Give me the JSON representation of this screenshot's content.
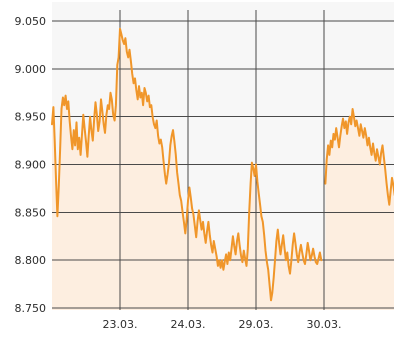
{
  "chart_data": {
    "type": "area",
    "title": "",
    "xlabel": "",
    "ylabel": "",
    "ylim": [
      8750,
      9060
    ],
    "y_ticks": [
      {
        "value": 8750,
        "label": "8.750"
      },
      {
        "value": 8800,
        "label": "8.800"
      },
      {
        "value": 8850,
        "label": "8.850"
      },
      {
        "value": 8900,
        "label": "8.900"
      },
      {
        "value": 8950,
        "label": "8.950"
      },
      {
        "value": 9000,
        "label": "9.000"
      },
      {
        "value": 9050,
        "label": "9.050"
      }
    ],
    "x_ticks": [
      {
        "x": 1.0,
        "label": "23.03."
      },
      {
        "x": 2.0,
        "label": "24.03."
      },
      {
        "x": 3.0,
        "label": "29.03."
      },
      {
        "x": 4.0,
        "label": "30.03."
      }
    ],
    "xlim": [
      0.0,
      5.05
    ],
    "grid": true,
    "colors": {
      "line": "#f0962a",
      "fill": "#fdeee0",
      "plot_bg_upper": "#f7f7f7",
      "grid": "#4a4a4a"
    },
    "series": [
      {
        "values": [
          [
            0.0,
            8942
          ],
          [
            0.02,
            8960
          ],
          [
            0.04,
            8925
          ],
          [
            0.06,
            8882
          ],
          [
            0.08,
            8846
          ],
          [
            0.1,
            8878
          ],
          [
            0.12,
            8918
          ],
          [
            0.14,
            8958
          ],
          [
            0.16,
            8970
          ],
          [
            0.18,
            8962
          ],
          [
            0.2,
            8972
          ],
          [
            0.22,
            8958
          ],
          [
            0.24,
            8966
          ],
          [
            0.26,
            8945
          ],
          [
            0.28,
            8930
          ],
          [
            0.3,
            8916
          ],
          [
            0.32,
            8936
          ],
          [
            0.34,
            8920
          ],
          [
            0.36,
            8944
          ],
          [
            0.38,
            8916
          ],
          [
            0.4,
            8928
          ],
          [
            0.42,
            8910
          ],
          [
            0.44,
            8930
          ],
          [
            0.46,
            8952
          ],
          [
            0.48,
            8938
          ],
          [
            0.5,
            8924
          ],
          [
            0.52,
            8908
          ],
          [
            0.54,
            8930
          ],
          [
            0.56,
            8950
          ],
          [
            0.58,
            8936
          ],
          [
            0.6,
            8925
          ],
          [
            0.62,
            8948
          ],
          [
            0.64,
            8965
          ],
          [
            0.66,
            8952
          ],
          [
            0.68,
            8935
          ],
          [
            0.7,
            8945
          ],
          [
            0.72,
            8968
          ],
          [
            0.74,
            8956
          ],
          [
            0.76,
            8942
          ],
          [
            0.78,
            8933
          ],
          [
            0.8,
            8952
          ],
          [
            0.82,
            8962
          ],
          [
            0.84,
            8958
          ],
          [
            0.86,
            8975
          ],
          [
            0.88,
            8968
          ],
          [
            0.9,
            8952
          ],
          [
            0.92,
            8946
          ],
          [
            0.94,
            8962
          ],
          [
            0.96,
            9004
          ],
          [
            0.98,
            9012
          ],
          [
            1.0,
            9042
          ],
          [
            1.02,
            9036
          ],
          [
            1.04,
            9030
          ],
          [
            1.06,
            9026
          ],
          [
            1.08,
            9032
          ],
          [
            1.1,
            9018
          ],
          [
            1.12,
            9012
          ],
          [
            1.14,
            9020
          ],
          [
            1.16,
            9008
          ],
          [
            1.18,
            8995
          ],
          [
            1.2,
            8985
          ],
          [
            1.22,
            8990
          ],
          [
            1.24,
            8978
          ],
          [
            1.26,
            8968
          ],
          [
            1.28,
            8982
          ],
          [
            1.3,
            8970
          ],
          [
            1.32,
            8975
          ],
          [
            1.34,
            8962
          ],
          [
            1.36,
            8980
          ],
          [
            1.38,
            8975
          ],
          [
            1.4,
            8966
          ],
          [
            1.42,
            8972
          ],
          [
            1.44,
            8960
          ],
          [
            1.46,
            8962
          ],
          [
            1.48,
            8950
          ],
          [
            1.5,
            8942
          ],
          [
            1.52,
            8938
          ],
          [
            1.54,
            8946
          ],
          [
            1.56,
            8930
          ],
          [
            1.58,
            8922
          ],
          [
            1.6,
            8926
          ],
          [
            1.62,
            8918
          ],
          [
            1.64,
            8904
          ],
          [
            1.66,
            8890
          ],
          [
            1.68,
            8880
          ],
          [
            1.7,
            8890
          ],
          [
            1.72,
            8902
          ],
          [
            1.74,
            8920
          ],
          [
            1.76,
            8930
          ],
          [
            1.78,
            8936
          ],
          [
            1.8,
            8924
          ],
          [
            1.82,
            8910
          ],
          [
            1.84,
            8892
          ],
          [
            1.86,
            8880
          ],
          [
            1.88,
            8868
          ],
          [
            1.9,
            8862
          ],
          [
            1.92,
            8850
          ],
          [
            1.94,
            8840
          ],
          [
            1.96,
            8828
          ],
          [
            1.98,
            8842
          ],
          [
            2.0,
            8862
          ],
          [
            2.02,
            8876
          ],
          [
            2.04,
            8866
          ],
          [
            2.06,
            8854
          ],
          [
            2.08,
            8848
          ],
          [
            2.1,
            8836
          ],
          [
            2.12,
            8824
          ],
          [
            2.14,
            8840
          ],
          [
            2.16,
            8852
          ],
          [
            2.18,
            8842
          ],
          [
            2.2,
            8832
          ],
          [
            2.22,
            8840
          ],
          [
            2.24,
            8828
          ],
          [
            2.26,
            8818
          ],
          [
            2.28,
            8830
          ],
          [
            2.3,
            8840
          ],
          [
            2.32,
            8826
          ],
          [
            2.34,
            8816
          ],
          [
            2.36,
            8808
          ],
          [
            2.38,
            8820
          ],
          [
            2.4,
            8812
          ],
          [
            2.42,
            8804
          ],
          [
            2.44,
            8794
          ],
          [
            2.46,
            8800
          ],
          [
            2.48,
            8792
          ],
          [
            2.5,
            8800
          ],
          [
            2.52,
            8790
          ],
          [
            2.54,
            8798
          ],
          [
            2.56,
            8806
          ],
          [
            2.58,
            8796
          ],
          [
            2.6,
            8808
          ],
          [
            2.62,
            8800
          ],
          [
            2.64,
            8812
          ],
          [
            2.66,
            8825
          ],
          [
            2.68,
            8815
          ],
          [
            2.7,
            8806
          ],
          [
            2.72,
            8820
          ],
          [
            2.74,
            8828
          ],
          [
            2.76,
            8815
          ],
          [
            2.78,
            8805
          ],
          [
            2.8,
            8798
          ],
          [
            2.82,
            8810
          ],
          [
            2.84,
            8802
          ],
          [
            2.86,
            8794
          ],
          [
            2.88,
            8812
          ],
          [
            2.9,
            8850
          ],
          [
            2.92,
            8880
          ],
          [
            2.94,
            8902
          ],
          [
            2.96,
            8896
          ],
          [
            2.98,
            8888
          ],
          [
            3.0,
            8900
          ],
          [
            3.02,
            8882
          ],
          [
            3.04,
            8870
          ],
          [
            3.06,
            8858
          ],
          [
            3.08,
            8846
          ],
          [
            3.1,
            8840
          ],
          [
            3.12,
            8826
          ],
          [
            3.14,
            8810
          ],
          [
            3.16,
            8798
          ],
          [
            3.18,
            8790
          ],
          [
            3.2,
            8774
          ],
          [
            3.22,
            8758
          ],
          [
            3.24,
            8766
          ],
          [
            3.26,
            8782
          ],
          [
            3.28,
            8800
          ],
          [
            3.3,
            8820
          ],
          [
            3.32,
            8832
          ],
          [
            3.34,
            8818
          ],
          [
            3.36,
            8806
          ],
          [
            3.38,
            8816
          ],
          [
            3.4,
            8826
          ],
          [
            3.42,
            8812
          ],
          [
            3.44,
            8800
          ],
          [
            3.46,
            8808
          ],
          [
            3.48,
            8794
          ],
          [
            3.5,
            8786
          ],
          [
            3.52,
            8800
          ],
          [
            3.54,
            8816
          ],
          [
            3.56,
            8828
          ],
          [
            3.58,
            8818
          ],
          [
            3.6,
            8806
          ],
          [
            3.62,
            8798
          ],
          [
            3.64,
            8808
          ],
          [
            3.66,
            8816
          ],
          [
            3.68,
            8808
          ],
          [
            3.7,
            8800
          ],
          [
            3.72,
            8796
          ],
          [
            3.74,
            8806
          ],
          [
            3.76,
            8818
          ],
          [
            3.78,
            8810
          ],
          [
            3.8,
            8800
          ],
          [
            3.82,
            8805
          ],
          [
            3.84,
            8812
          ],
          [
            3.86,
            8804
          ],
          [
            3.88,
            8798
          ],
          [
            3.9,
            8796
          ],
          [
            3.92,
            8802
          ],
          [
            3.94,
            8808
          ],
          [
            3.96,
            8800
          ],
          [
            4.02,
            8880
          ],
          [
            4.04,
            8905
          ],
          [
            4.06,
            8920
          ],
          [
            4.08,
            8910
          ],
          [
            4.1,
            8925
          ],
          [
            4.12,
            8918
          ],
          [
            4.14,
            8932
          ],
          [
            4.16,
            8926
          ],
          [
            4.18,
            8938
          ],
          [
            4.2,
            8928
          ],
          [
            4.22,
            8918
          ],
          [
            4.24,
            8930
          ],
          [
            4.26,
            8940
          ],
          [
            4.28,
            8948
          ],
          [
            4.3,
            8938
          ],
          [
            4.32,
            8945
          ],
          [
            4.34,
            8932
          ],
          [
            4.36,
            8944
          ],
          [
            4.38,
            8950
          ],
          [
            4.4,
            8942
          ],
          [
            4.42,
            8958
          ],
          [
            4.44,
            8950
          ],
          [
            4.46,
            8940
          ],
          [
            4.48,
            8946
          ],
          [
            4.5,
            8938
          ],
          [
            4.52,
            8930
          ],
          [
            4.54,
            8942
          ],
          [
            4.56,
            8935
          ],
          [
            4.58,
            8928
          ],
          [
            4.6,
            8938
          ],
          [
            4.62,
            8930
          ],
          [
            4.64,
            8920
          ],
          [
            4.66,
            8928
          ],
          [
            4.68,
            8918
          ],
          [
            4.7,
            8910
          ],
          [
            4.72,
            8922
          ],
          [
            4.74,
            8912
          ],
          [
            4.76,
            8904
          ],
          [
            4.78,
            8916
          ],
          [
            4.8,
            8908
          ],
          [
            4.82,
            8900
          ],
          [
            4.84,
            8912
          ],
          [
            4.86,
            8920
          ],
          [
            4.88,
            8908
          ],
          [
            4.9,
            8895
          ],
          [
            4.92,
            8880
          ],
          [
            4.94,
            8868
          ],
          [
            4.96,
            8858
          ],
          [
            4.98,
            8872
          ],
          [
            5.0,
            8886
          ],
          [
            5.02,
            8878
          ],
          [
            5.04,
            8868
          ]
        ]
      }
    ]
  }
}
